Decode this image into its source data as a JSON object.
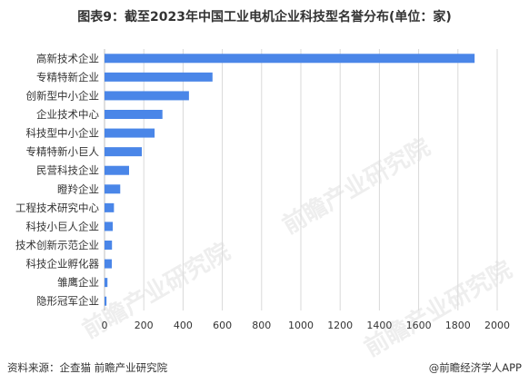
{
  "title": "图表9：截至2023年中国工业电机企业科技型名誉分布(单位：家)",
  "footer": {
    "source": "资料来源：企查猫 前瞻产业研究院",
    "brand": "@前瞻经济学人APP"
  },
  "watermark": "前瞻产业研究院",
  "colors": {
    "bar": "#4A86E8",
    "grid": "#D9D9D9",
    "axis": "#BFBFBF"
  },
  "chart_data": {
    "type": "bar",
    "orientation": "horizontal",
    "categories": [
      "高新技术企业",
      "专精特新企业",
      "创新型中小企业",
      "企业技术中心",
      "科技型中小企业",
      "专精特新小巨人",
      "民营科技企业",
      "瞪羚企业",
      "工程技术研究中心",
      "科技小巨人企业",
      "技术创新示范企业",
      "科技企业孵化器",
      "雏鹰企业",
      "隐形冠军企业"
    ],
    "values": [
      1885,
      550,
      430,
      295,
      255,
      190,
      125,
      80,
      48,
      42,
      38,
      37,
      15,
      10
    ],
    "xlim": [
      0,
      2000
    ],
    "xticks": [
      0,
      200,
      400,
      600,
      800,
      1000,
      1200,
      1400,
      1600,
      1800,
      2000
    ],
    "grid": true
  }
}
